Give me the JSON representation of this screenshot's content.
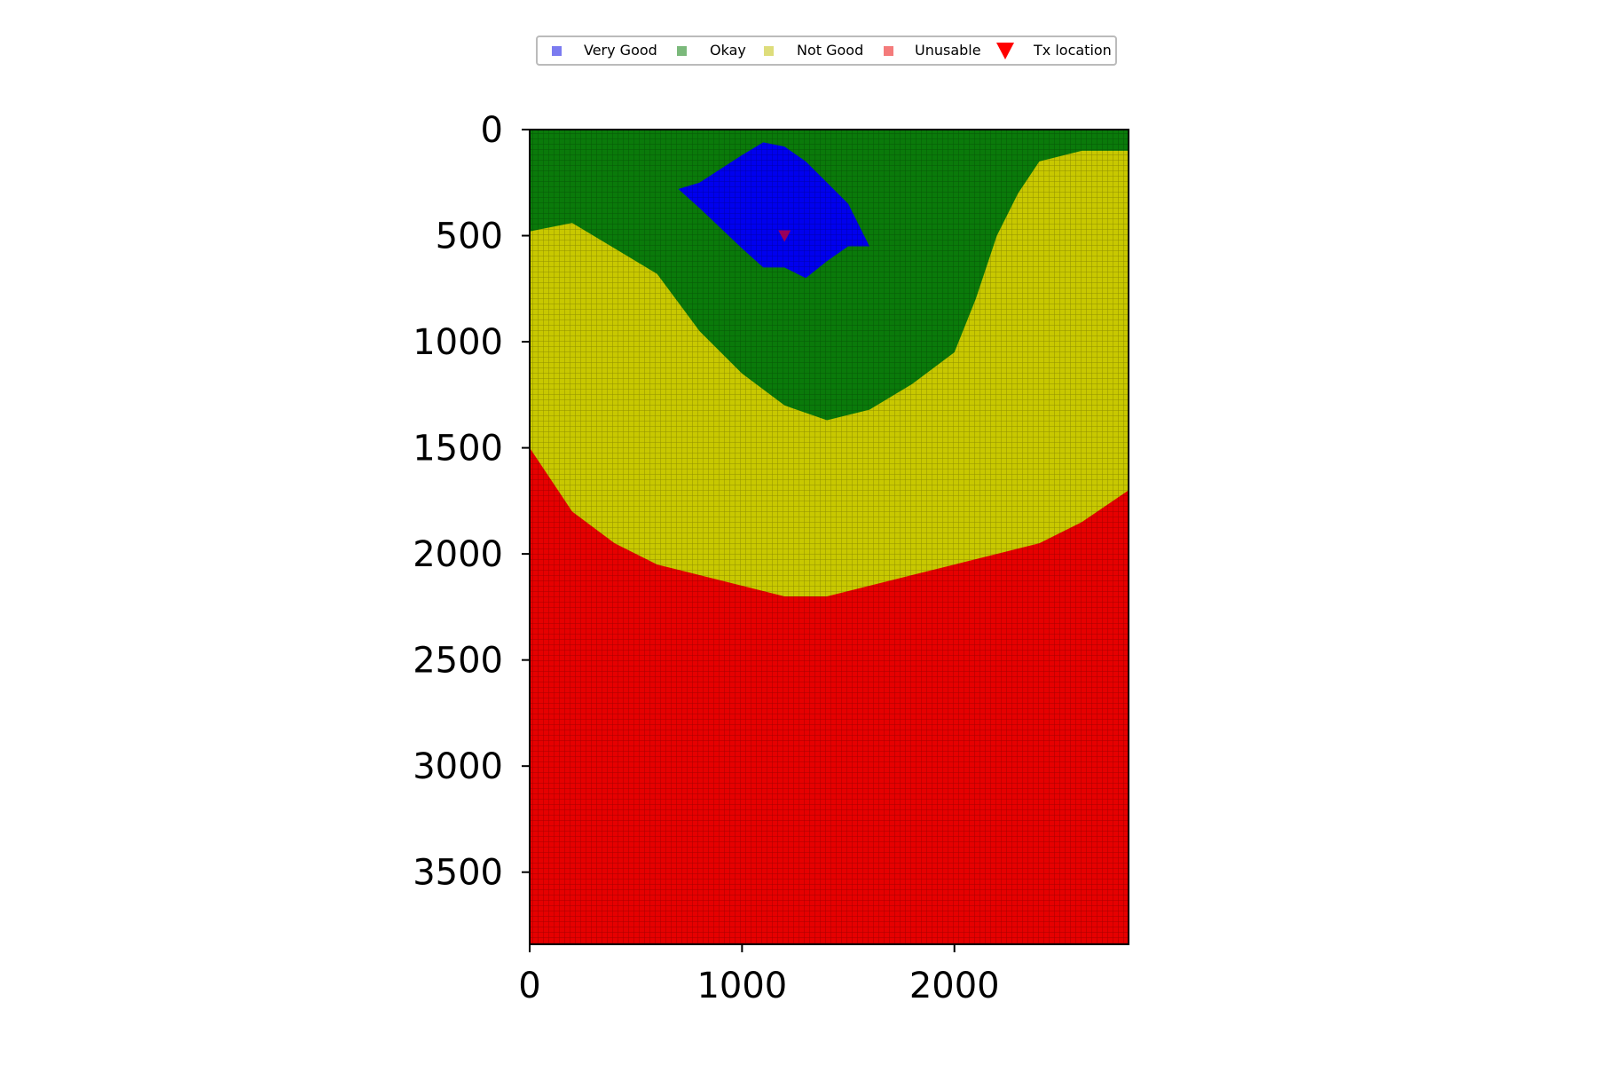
{
  "chart_data": {
    "type": "heatmap",
    "title": "",
    "xlabel": "",
    "ylabel": "",
    "xlim": [
      0,
      2820
    ],
    "ylim": [
      3840,
      0
    ],
    "y_inverted": true,
    "xticks": [
      0,
      1000,
      2000
    ],
    "yticks": [
      0,
      500,
      1000,
      1500,
      2000,
      2500,
      3000,
      3500
    ],
    "grid": false,
    "legend": {
      "placement": "top-center, above plot",
      "entries": [
        {
          "label": "Very Good",
          "marker": "square",
          "color": "#7b7bf0"
        },
        {
          "label": "Okay",
          "marker": "square",
          "color": "#7bb97b"
        },
        {
          "label": "Not Good",
          "marker": "square",
          "color": "#dedd7b"
        },
        {
          "label": "Unusable",
          "marker": "square",
          "color": "#f47b7b"
        },
        {
          "label": "Tx location",
          "marker": "triangle-down",
          "color": "#ff0000"
        }
      ]
    },
    "categories": [
      "Very Good",
      "Okay",
      "Not Good",
      "Unusable"
    ],
    "category_colors": {
      "Very Good": "#0000ee",
      "Okay": "#0a7a0a",
      "Not Good": "#c8c800",
      "Unusable": "#e60000"
    },
    "tx_location": {
      "x": 1200,
      "y": 500
    },
    "region_boundaries": [
      {
        "name": "Okay_top",
        "x": [
          0,
          200,
          400,
          600,
          800,
          1000,
          1200,
          1400,
          1600,
          1800,
          2000,
          2100,
          2200,
          2300,
          2400,
          2600,
          2820
        ],
        "y_bottom": [
          480,
          440,
          560,
          680,
          950,
          1150,
          1300,
          1370,
          1320,
          1200,
          1050,
          800,
          500,
          300,
          150,
          100,
          100
        ]
      },
      {
        "name": "Very Good",
        "x": [
          700,
          800,
          1000,
          1100,
          1200,
          1300,
          1400,
          1500,
          1600
        ],
        "y_top": [
          280,
          250,
          120,
          60,
          80,
          150,
          250,
          350,
          550
        ],
        "y_bottom": [
          280,
          370,
          560,
          650,
          650,
          700,
          620,
          550,
          550
        ]
      },
      {
        "name": "Unusable_top",
        "x": [
          0,
          200,
          400,
          600,
          800,
          1000,
          1200,
          1400,
          1600,
          1800,
          2000,
          2200,
          2400,
          2600,
          2820
        ],
        "y": [
          1500,
          1800,
          1950,
          2050,
          2100,
          2150,
          2200,
          2200,
          2150,
          2100,
          2050,
          2000,
          1950,
          1850,
          1700
        ]
      }
    ]
  }
}
